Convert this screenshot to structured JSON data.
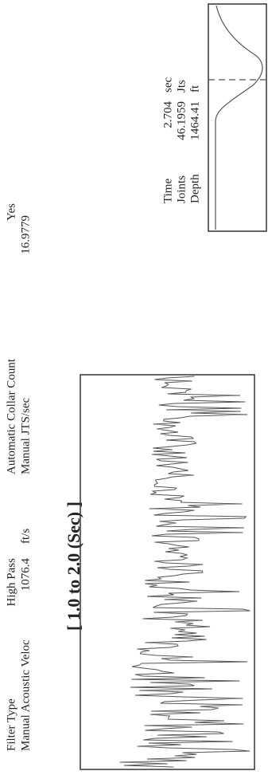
{
  "header": {
    "filter_type_label": "Filter Type",
    "filter_type": "High Pass",
    "velocity_label": "Manual Acoustic Veloc",
    "velocity": "1076.4",
    "velocity_unit": "ft/s",
    "collar_count_label": "Automatic Collar Count",
    "collar_count": "Yes",
    "jts_label": "Manual JTS/sec",
    "jts": "16.9779"
  },
  "waveform": {
    "title": "[ 1.0 to 2.0 (Sec) ]"
  },
  "marker": {
    "rows": [
      {
        "label": "Time",
        "value": "2.704",
        "unit": "sec"
      },
      {
        "label": "Joints",
        "value": "46.1959",
        "unit": "Jts"
      },
      {
        "label": "Depth",
        "value": "1464.41",
        "unit": "ft"
      }
    ]
  }
}
